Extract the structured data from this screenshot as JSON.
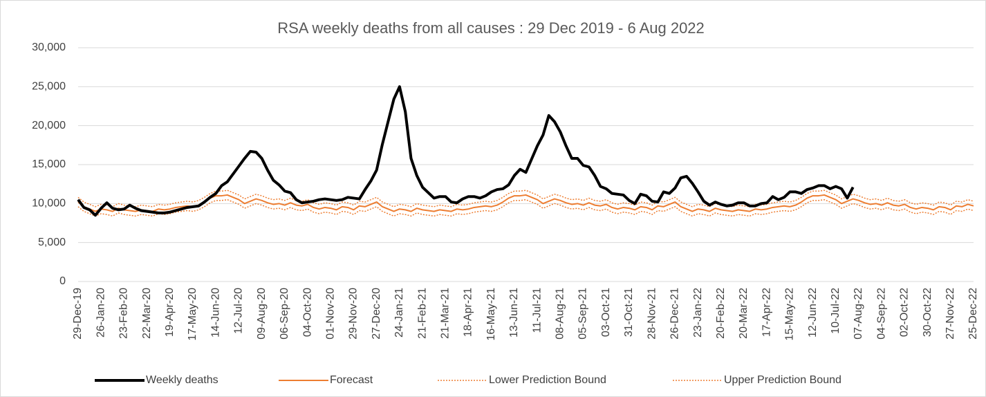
{
  "chart_data": {
    "type": "line",
    "title": "RSA weekly deaths from all causes : 29 Dec 2019 - 6 Aug 2022",
    "categories": [
      "29-Dec-19",
      null,
      null,
      null,
      "26-Jan-20",
      null,
      null,
      null,
      "23-Feb-20",
      null,
      null,
      null,
      "22-Mar-20",
      null,
      null,
      null,
      "19-Apr-20",
      null,
      null,
      null,
      "17-May-20",
      null,
      null,
      null,
      "14-Jun-20",
      null,
      null,
      null,
      "12-Jul-20",
      null,
      null,
      null,
      "09-Aug-20",
      null,
      null,
      null,
      "06-Sep-20",
      null,
      null,
      null,
      "04-Oct-20",
      null,
      null,
      null,
      "01-Nov-20",
      null,
      null,
      null,
      "29-Nov-20",
      null,
      null,
      null,
      "27-Dec-20",
      null,
      null,
      null,
      "24-Jan-21",
      null,
      null,
      null,
      "21-Feb-21",
      null,
      null,
      null,
      "21-Mar-21",
      null,
      null,
      null,
      "18-Apr-21",
      null,
      null,
      null,
      "16-May-21",
      null,
      null,
      null,
      "13-Jun-21",
      null,
      null,
      null,
      "11-Jul-21",
      null,
      null,
      null,
      "08-Aug-21",
      null,
      null,
      null,
      "05-Sep-21",
      null,
      null,
      null,
      "03-Oct-21",
      null,
      null,
      null,
      "31-Oct-21",
      null,
      null,
      null,
      "28-Nov-21",
      null,
      null,
      null,
      "26-Dec-21",
      null,
      null,
      null,
      "23-Jan-22",
      null,
      null,
      null,
      "20-Feb-22",
      null,
      null,
      null,
      "20-Mar-22",
      null,
      null,
      null,
      "17-Apr-22",
      null,
      null,
      null,
      "15-May-22",
      null,
      null,
      null,
      "12-Jun-22",
      null,
      null,
      null,
      "10-Jul-22",
      null,
      null,
      null,
      "07-Aug-22",
      null,
      null,
      null,
      "04-Sep-22",
      null,
      null,
      null,
      "02-Oct-22",
      null,
      null,
      null,
      "30-Oct-22",
      null,
      null,
      null,
      "27-Nov-22",
      null,
      null,
      null,
      "25-Dec-22"
    ],
    "series": [
      {
        "name": "Weekly deaths",
        "color": "#000000",
        "width": 4,
        "dash": "solid",
        "values": [
          10500,
          9500,
          9200,
          8500,
          9400,
          10100,
          9400,
          9200,
          9300,
          9800,
          9400,
          9100,
          9000,
          8900,
          8800,
          8800,
          8900,
          9100,
          9300,
          9500,
          9600,
          9700,
          10200,
          10800,
          11300,
          12300,
          12800,
          13800,
          14800,
          15800,
          16700,
          16600,
          15800,
          14300,
          13000,
          12400,
          11600,
          11400,
          10500,
          10100,
          10200,
          10300,
          10500,
          10600,
          10500,
          10400,
          10500,
          10800,
          10700,
          10600,
          11800,
          12900,
          14300,
          17600,
          20500,
          23400,
          25000,
          21800,
          15800,
          13600,
          12100,
          11400,
          10700,
          10900,
          10900,
          10200,
          10100,
          10600,
          10900,
          10900,
          10700,
          11000,
          11500,
          11800,
          11900,
          12400,
          13600,
          14400,
          14000,
          15700,
          17400,
          18800,
          21300,
          20500,
          19200,
          17400,
          15800,
          15800,
          14900,
          14700,
          13600,
          12200,
          11900,
          11300,
          11200,
          11100,
          10400,
          10000,
          11200,
          11000,
          10300,
          10200,
          11500,
          11300,
          12000,
          13300,
          13500,
          12600,
          11500,
          10300,
          9800,
          10200,
          9900,
          9700,
          9800,
          10100,
          10100,
          9700,
          9700,
          10000,
          10100,
          10900,
          10500,
          10800,
          11500,
          11500,
          11300,
          11800,
          12000,
          12300,
          12300,
          11900,
          12200,
          11900,
          10700,
          12100,
          null,
          null,
          null,
          null,
          null,
          null,
          null,
          null,
          null,
          null,
          null,
          null,
          null,
          null,
          null,
          null,
          null,
          null,
          null,
          null,
          null
        ]
      },
      {
        "name": "Forecast",
        "color": "#ed7d31",
        "width": 2,
        "dash": "solid",
        "values": [
          10200,
          9600,
          9300,
          9000,
          9300,
          9200,
          9000,
          9400,
          9200,
          9100,
          9000,
          9200,
          9100,
          9000,
          9300,
          9200,
          9300,
          9500,
          9600,
          9700,
          9600,
          9800,
          10200,
          10700,
          11000,
          11000,
          11100,
          10800,
          10500,
          10000,
          10300,
          10600,
          10400,
          10100,
          9900,
          10000,
          9800,
          10100,
          9800,
          9700,
          9900,
          9500,
          9300,
          9500,
          9400,
          9200,
          9600,
          9500,
          9200,
          9700,
          9600,
          9900,
          10200,
          9600,
          9300,
          9000,
          9300,
          9200,
          9000,
          9400,
          9200,
          9100,
          9000,
          9200,
          9100,
          9000,
          9300,
          9200,
          9300,
          9500,
          9600,
          9700,
          9600,
          9800,
          10200,
          10700,
          11000,
          11000,
          11100,
          10800,
          10500,
          10000,
          10300,
          10600,
          10400,
          10100,
          9900,
          10000,
          9800,
          10100,
          9800,
          9700,
          9900,
          9500,
          9300,
          9500,
          9400,
          9200,
          9600,
          9500,
          9200,
          9700,
          9600,
          9900,
          10200,
          9600,
          9300,
          9000,
          9300,
          9200,
          9000,
          9400,
          9200,
          9100,
          9000,
          9200,
          9100,
          9000,
          9300,
          9200,
          9300,
          9500,
          9600,
          9700,
          9600,
          9800,
          10200,
          10700,
          11000,
          11000,
          11100,
          10800,
          10500,
          10000,
          10300,
          10600,
          10400,
          10100,
          9900,
          10000,
          9800,
          10100,
          9800,
          9700,
          9900,
          9500,
          9300,
          9500,
          9400,
          9200,
          9600,
          9500,
          9200,
          9700,
          9600,
          9900,
          9700
        ]
      },
      {
        "name": "Lower Prediction Bound",
        "color": "#ed7d31",
        "width": 1.5,
        "dash": "dotted",
        "values": [
          9600,
          9000,
          8700,
          8400,
          8700,
          8600,
          8400,
          8800,
          8600,
          8500,
          8400,
          8600,
          8500,
          8400,
          8700,
          8600,
          8700,
          8900,
          9000,
          9100,
          9000,
          9200,
          9600,
          10100,
          10400,
          10400,
          10500,
          10200,
          9900,
          9400,
          9700,
          10000,
          9800,
          9500,
          9300,
          9400,
          9200,
          9500,
          9200,
          9100,
          9300,
          8900,
          8700,
          8900,
          8800,
          8600,
          9000,
          8900,
          8600,
          9100,
          9000,
          9300,
          9600,
          9000,
          8700,
          8400,
          8700,
          8600,
          8400,
          8800,
          8600,
          8500,
          8400,
          8600,
          8500,
          8400,
          8700,
          8600,
          8700,
          8900,
          9000,
          9100,
          9000,
          9200,
          9600,
          10100,
          10400,
          10400,
          10500,
          10200,
          9900,
          9400,
          9700,
          10000,
          9800,
          9500,
          9300,
          9400,
          9200,
          9500,
          9200,
          9100,
          9300,
          8900,
          8700,
          8900,
          8800,
          8600,
          9000,
          8900,
          8600,
          9100,
          9000,
          9300,
          9600,
          9000,
          8700,
          8400,
          8700,
          8600,
          8400,
          8800,
          8600,
          8500,
          8400,
          8600,
          8500,
          8400,
          8700,
          8600,
          8700,
          8900,
          9000,
          9100,
          9000,
          9200,
          9600,
          10100,
          10400,
          10400,
          10500,
          10200,
          9900,
          9400,
          9700,
          10000,
          9800,
          9500,
          9300,
          9400,
          9200,
          9500,
          9200,
          9100,
          9300,
          8900,
          8700,
          8900,
          8800,
          8600,
          9000,
          8900,
          8600,
          9100,
          9000,
          9300,
          9100
        ]
      },
      {
        "name": "Upper Prediction Bound",
        "color": "#ed7d31",
        "width": 1.5,
        "dash": "dotted",
        "values": [
          10800,
          10200,
          9900,
          9600,
          9900,
          9800,
          9600,
          10000,
          9800,
          9700,
          9600,
          9800,
          9700,
          9600,
          9900,
          9800,
          9900,
          10100,
          10200,
          10300,
          10200,
          10400,
          10800,
          11300,
          11600,
          11600,
          11700,
          11400,
          11100,
          10600,
          10900,
          11200,
          11000,
          10700,
          10500,
          10600,
          10400,
          10700,
          10400,
          10300,
          10500,
          10100,
          9900,
          10100,
          10000,
          9800,
          10200,
          10100,
          9800,
          10300,
          10200,
          10500,
          10800,
          10200,
          9900,
          9600,
          9900,
          9800,
          9600,
          10000,
          9800,
          9700,
          9600,
          9800,
          9700,
          9600,
          9900,
          9800,
          9900,
          10100,
          10200,
          10300,
          10200,
          10400,
          10800,
          11300,
          11600,
          11600,
          11700,
          11400,
          11100,
          10600,
          10900,
          11200,
          11000,
          10700,
          10500,
          10600,
          10400,
          10700,
          10400,
          10300,
          10500,
          10100,
          9900,
          10100,
          10000,
          9800,
          10200,
          10100,
          9800,
          10300,
          10200,
          10500,
          10800,
          10200,
          9900,
          9600,
          9900,
          9800,
          9600,
          10000,
          9800,
          9700,
          9600,
          9800,
          9700,
          9600,
          9900,
          9800,
          9900,
          10100,
          10200,
          10300,
          10200,
          10400,
          10800,
          11300,
          11600,
          11600,
          11700,
          11400,
          11100,
          10600,
          10900,
          11200,
          11000,
          10700,
          10500,
          10600,
          10400,
          10700,
          10400,
          10300,
          10500,
          10100,
          9900,
          10100,
          10000,
          9800,
          10200,
          10100,
          9800,
          10300,
          10200,
          10500,
          10300
        ]
      }
    ],
    "ylim": [
      0,
      30000
    ],
    "yticks": [
      0,
      {
        "value": 5000,
        "label": "5,000"
      },
      {
        "value": 10000,
        "label": "10,000"
      },
      {
        "value": 15000,
        "label": "15,000"
      },
      {
        "value": 20000,
        "label": "20,000"
      },
      {
        "value": 25000,
        "label": "25,000"
      },
      {
        "value": 30000,
        "label": "30,000"
      }
    ],
    "grid": true,
    "legend": "bottom"
  }
}
